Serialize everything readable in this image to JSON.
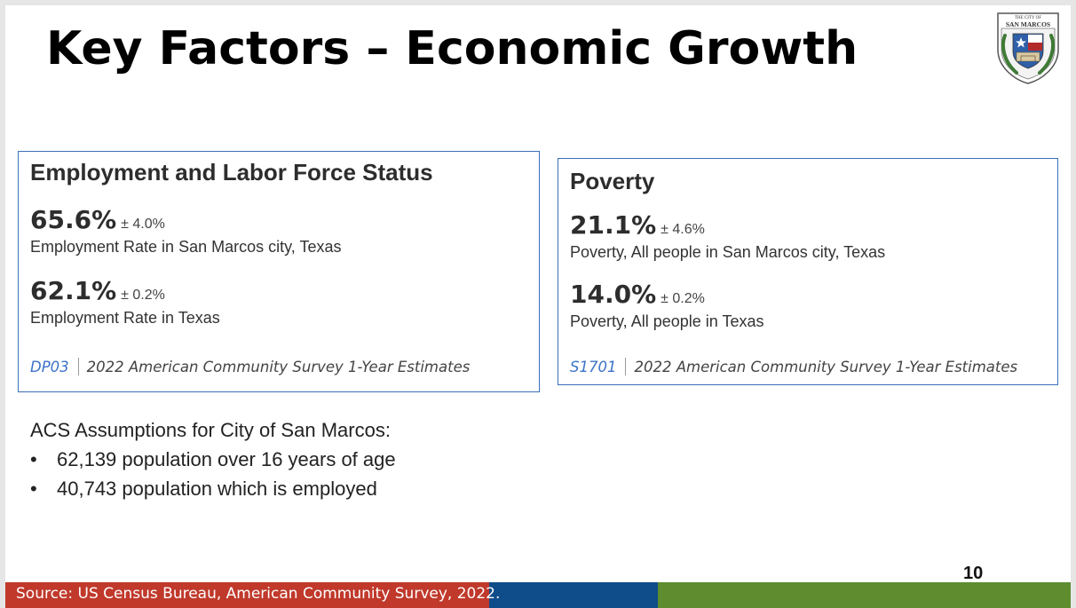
{
  "slide": {
    "title": "Key Factors – Economic Growth",
    "page_number": "10"
  },
  "seal": {
    "text_small": "THE CITY OF",
    "text_big": "SAN MARCOS",
    "icon": "city-seal-icon",
    "colors": {
      "shield_blue": "#2f5fa8",
      "shield_red": "#b32a2a",
      "laurel_green": "#3f7a35"
    }
  },
  "employment_card": {
    "heading": "Employment and Labor Force Status",
    "stats": [
      {
        "value": "65.6%",
        "moe": "± 4.0%",
        "label": "Employment Rate in San Marcos city, Texas"
      },
      {
        "value": "62.1%",
        "moe": "± 0.2%",
        "label": "Employment Rate in Texas"
      }
    ],
    "table_code": "DP03",
    "survey": "2022 American Community Survey 1-Year Estimates"
  },
  "poverty_card": {
    "heading": "Poverty",
    "stats": [
      {
        "value": "21.1%",
        "moe": "± 4.6%",
        "label": "Poverty, All people in San Marcos city, Texas"
      },
      {
        "value": "14.0%",
        "moe": "± 0.2%",
        "label": "Poverty, All people in Texas"
      }
    ],
    "table_code": "S1701",
    "survey": "2022 American Community Survey 1-Year Estimates"
  },
  "assumptions": {
    "heading": "ACS Assumptions for City of San Marcos:",
    "bullet": "•",
    "items": [
      "62,139 population over 16 years of age",
      "40,743 population which is employed"
    ]
  },
  "footer_bar": {
    "source_text": "Source: US Census Bureau, American Community Survey, 2022.",
    "colors": {
      "red": "#c0392b",
      "blue": "#0f4c8a",
      "green": "#5e8c2e"
    }
  },
  "theme": {
    "card_border": "#3a6fb8",
    "link_blue": "#3b73c8"
  }
}
